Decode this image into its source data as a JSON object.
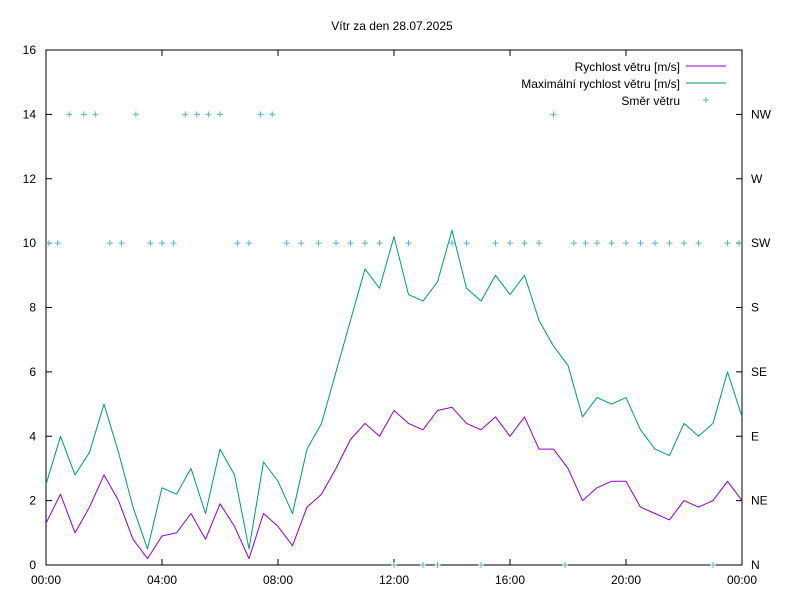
{
  "chart_data": {
    "type": "line",
    "title": "Vítr za den 28.07.2025",
    "x_axis": {
      "range_hours": [
        0,
        24
      ],
      "tick_hours": [
        0,
        4,
        8,
        12,
        16,
        20,
        24
      ],
      "tick_labels": [
        "00:00",
        "04:00",
        "08:00",
        "12:00",
        "16:00",
        "20:00",
        "00:00"
      ]
    },
    "y_left": {
      "range": [
        0,
        16
      ],
      "ticks": [
        0,
        2,
        4,
        6,
        8,
        10,
        12,
        14,
        16
      ],
      "tick_labels": [
        "0",
        "2",
        "4",
        "6",
        "8",
        "10",
        "12",
        "14",
        "16"
      ]
    },
    "y_right": {
      "tick_values": [
        0,
        2,
        4,
        6,
        8,
        10,
        12,
        14
      ],
      "tick_labels": [
        "N",
        "NE",
        "E",
        "SE",
        "S",
        "SW",
        "W",
        "NW"
      ]
    },
    "legend_position": "top-right",
    "grid": false,
    "series": [
      {
        "name": "Rychlost větru [m/s]",
        "color": "#9400d3",
        "style": "line",
        "x": [
          0,
          0.5,
          1,
          1.5,
          2,
          2.5,
          3,
          3.5,
          4,
          4.5,
          5,
          5.5,
          6,
          6.5,
          7,
          7.5,
          8,
          8.5,
          9,
          9.5,
          10,
          10.5,
          11,
          11.5,
          12,
          12.5,
          13,
          13.5,
          14,
          14.5,
          15,
          15.5,
          16,
          16.5,
          17,
          17.5,
          18,
          18.5,
          19,
          19.5,
          20,
          20.5,
          21,
          21.5,
          22,
          22.5,
          23,
          23.5,
          24
        ],
        "y": [
          1.3,
          2.2,
          1.0,
          1.8,
          2.8,
          2.0,
          0.8,
          0.2,
          0.9,
          1.0,
          1.6,
          0.8,
          1.9,
          1.2,
          0.2,
          1.6,
          1.2,
          0.6,
          1.8,
          2.2,
          3.0,
          3.9,
          4.4,
          4.0,
          4.8,
          4.4,
          4.2,
          4.8,
          4.9,
          4.4,
          4.2,
          4.6,
          4.0,
          4.6,
          3.6,
          3.6,
          3.0,
          2.0,
          2.4,
          2.6,
          2.6,
          1.8,
          1.6,
          1.4,
          2.0,
          1.8,
          2.0,
          2.6,
          2.0
        ]
      },
      {
        "name": "Maximální rychlost větru [m/s]",
        "color": "#009e73",
        "style": "line",
        "x": [
          0,
          0.5,
          1,
          1.5,
          2,
          2.5,
          3,
          3.5,
          4,
          4.5,
          5,
          5.5,
          6,
          6.5,
          7,
          7.5,
          8,
          8.5,
          9,
          9.5,
          10,
          10.5,
          11,
          11.5,
          12,
          12.5,
          13,
          13.5,
          14,
          14.5,
          15,
          15.5,
          16,
          16.5,
          17,
          17.5,
          18,
          18.5,
          19,
          19.5,
          20,
          20.5,
          21,
          21.5,
          22,
          22.5,
          23,
          23.5,
          24
        ],
        "y": [
          2.5,
          4.0,
          2.8,
          3.5,
          5.0,
          3.5,
          1.8,
          0.5,
          2.4,
          2.2,
          3.0,
          1.6,
          3.6,
          2.8,
          0.5,
          3.2,
          2.6,
          1.6,
          3.6,
          4.4,
          6.0,
          7.6,
          9.2,
          8.6,
          10.2,
          8.4,
          8.2,
          8.8,
          10.4,
          8.6,
          8.2,
          9.0,
          8.4,
          9.0,
          7.6,
          6.8,
          6.2,
          4.6,
          5.2,
          5.0,
          5.2,
          4.2,
          3.6,
          3.4,
          4.4,
          4.0,
          4.4,
          6.0,
          4.6
        ]
      },
      {
        "name": "Směr větru",
        "color": "#56b4e9",
        "style": "points",
        "x": [
          0.1,
          0.4,
          0.8,
          1.3,
          1.7,
          2.2,
          2.6,
          3.1,
          3.6,
          4.0,
          4.4,
          4.8,
          5.2,
          5.6,
          6.0,
          6.6,
          7.0,
          7.4,
          7.8,
          8.3,
          8.8,
          9.4,
          10.0,
          10.5,
          11.0,
          11.5,
          12.0,
          12.5,
          13.0,
          13.5,
          14.0,
          14.5,
          15.0,
          15.5,
          16.0,
          16.5,
          17.0,
          17.5,
          17.9,
          18.2,
          18.6,
          19.0,
          19.5,
          20.0,
          20.5,
          21.0,
          21.5,
          22.0,
          22.5,
          23.0,
          23.5,
          23.9
        ],
        "y": [
          10,
          10,
          14,
          14,
          14,
          10,
          10,
          14,
          10,
          10,
          10,
          14,
          14,
          14,
          14,
          10,
          10,
          14,
          14,
          10,
          10,
          10,
          10,
          10,
          10,
          10,
          0,
          10,
          0,
          0,
          10,
          10,
          0,
          10,
          10,
          10,
          10,
          14,
          0,
          10,
          10,
          10,
          10,
          10,
          10,
          10,
          10,
          10,
          10,
          0,
          10,
          10
        ]
      }
    ]
  }
}
